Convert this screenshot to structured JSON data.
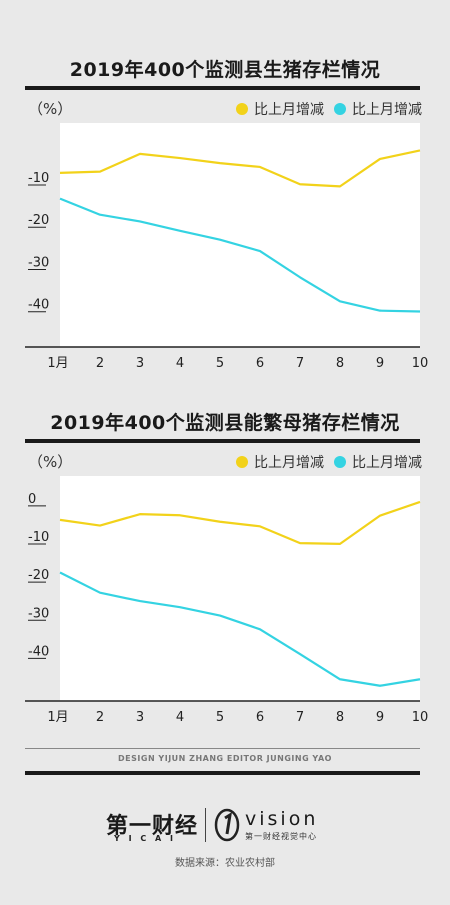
{
  "chart_data": [
    {
      "type": "line",
      "title": "2019年400个监测县生猪存栏情况",
      "unit": "（%）",
      "categories": [
        "1月",
        "2",
        "3",
        "4",
        "5",
        "6",
        "7",
        "8",
        "9",
        "10"
      ],
      "ylim": [
        -50,
        3
      ],
      "yticks": [
        -10,
        -20,
        -30,
        -40
      ],
      "series": [
        {
          "name": "比上月增减",
          "color": "#f2d21a",
          "values": [
            -8.8,
            -8.5,
            -4.3,
            -5.3,
            -6.5,
            -7.4,
            -11.5,
            -12.0,
            -5.5,
            -3.5
          ]
        },
        {
          "name": "比上月增减",
          "color": "#34d3e2",
          "values": [
            -14.9,
            -18.7,
            -20.3,
            -22.5,
            -24.6,
            -27.3,
            -33.5,
            -39.2,
            -41.4,
            -41.6
          ]
        }
      ]
    },
    {
      "type": "line",
      "title": "2019年400个监测县能繁母猪存栏情况",
      "unit": "（%）",
      "categories": [
        "1月",
        "2",
        "3",
        "4",
        "5",
        "6",
        "7",
        "8",
        "9",
        "10"
      ],
      "ylim": [
        -53,
        6
      ],
      "yticks": [
        0,
        -10,
        -20,
        -30,
        -40
      ],
      "series": [
        {
          "name": "比上月增减",
          "color": "#f2d21a",
          "values": [
            -5.5,
            -7.0,
            -4.0,
            -4.3,
            -6.0,
            -7.2,
            -11.6,
            -11.8,
            -4.4,
            -0.8
          ]
        },
        {
          "name": "比上月增减",
          "color": "#34d3e2",
          "values": [
            -19.3,
            -24.6,
            -26.8,
            -28.4,
            -30.6,
            -34.2,
            -40.7,
            -47.3,
            -49.0,
            -47.3
          ]
        }
      ]
    }
  ],
  "credits": "DESIGN YIJUN ZHANG   EDITOR JUNGING YAO",
  "brand_left": "第一财经",
  "brand_left_sub": "Y I C A I",
  "brand_right": "vision",
  "brand_right_sub": "第一财经视觉中心",
  "source": "数据来源：农业农村部"
}
